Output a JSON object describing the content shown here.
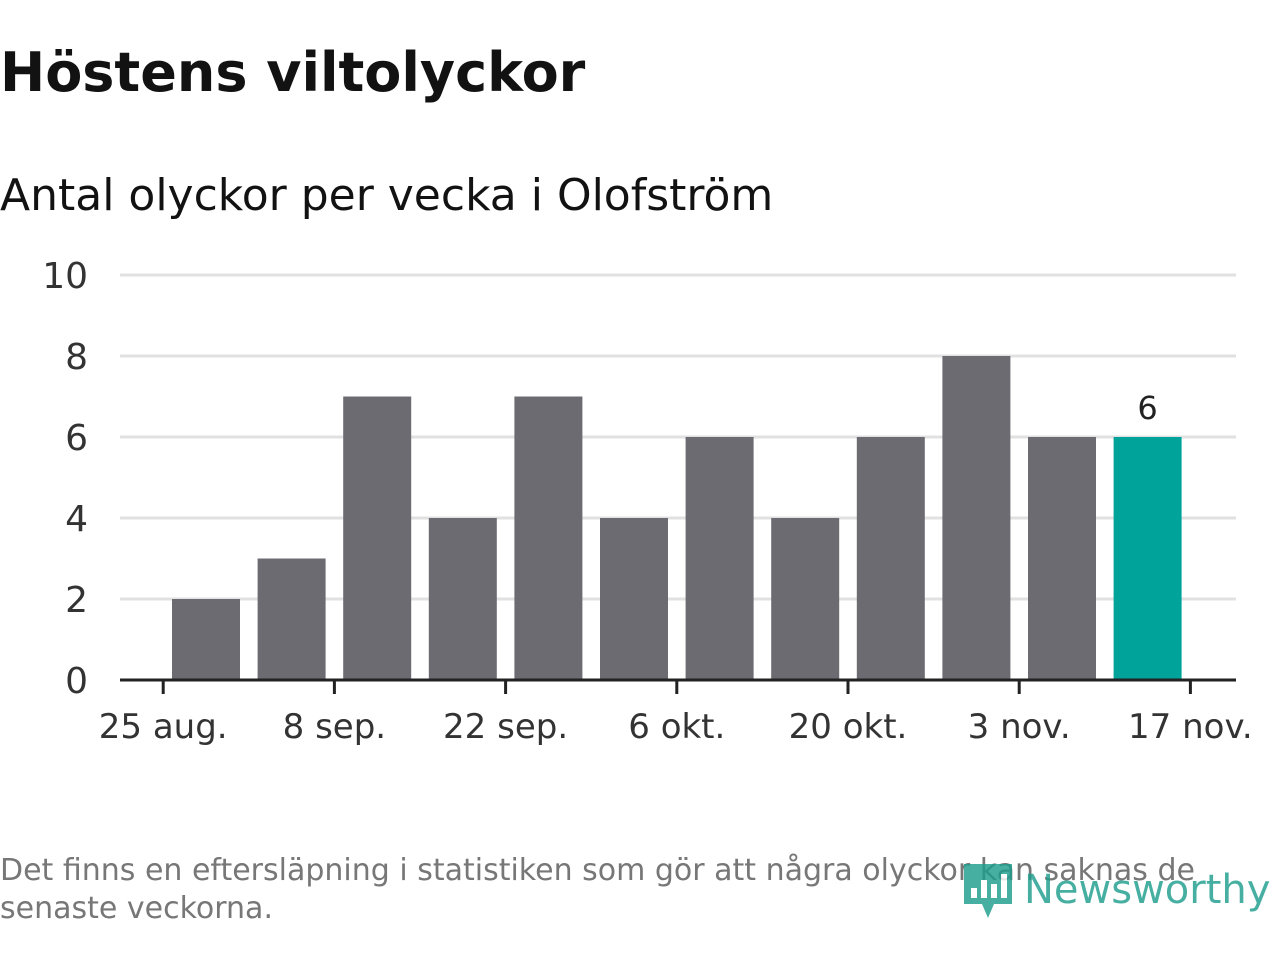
{
  "chart_data": {
    "type": "bar",
    "title": "Höstens viltolyckor",
    "subtitle": "Antal olyckor per vecka i Olofström",
    "x_tick_labels": [
      "25 aug.",
      "8 sep.",
      "22 sep.",
      "6 okt.",
      "20 okt.",
      "3 nov.",
      "17 nov."
    ],
    "y_ticks": [
      0,
      2,
      4,
      6,
      8,
      10
    ],
    "ylim": [
      0,
      10
    ],
    "grid": "horizontal",
    "bars": [
      {
        "week_start": "25 aug.",
        "value": 2
      },
      {
        "week_start": "1 sep.",
        "value": 3
      },
      {
        "week_start": "8 sep.",
        "value": 7
      },
      {
        "week_start": "15 sep.",
        "value": 4
      },
      {
        "week_start": "22 sep.",
        "value": 7
      },
      {
        "week_start": "29 sep.",
        "value": 4
      },
      {
        "week_start": "6 okt.",
        "value": 6
      },
      {
        "week_start": "13 okt.",
        "value": 4
      },
      {
        "week_start": "20 okt.",
        "value": 6
      },
      {
        "week_start": "27 okt.",
        "value": 8
      },
      {
        "week_start": "3 nov.",
        "value": 6
      },
      {
        "week_start": "10 nov.",
        "value": 6
      }
    ],
    "highlighted_value_label": "6",
    "colors": {
      "bar": "#6c6b72",
      "highlight": "#00a39a",
      "grid": "#e1e1e1",
      "axis": "#222222"
    }
  },
  "footnote": "Det finns en eftersläpning i statistiken som gör att några olyckor kan saknas de senaste veckorna.",
  "logo": {
    "text": "Newsworthy",
    "icon": "newsworthy-chart-icon",
    "color": "#1f9e8e"
  }
}
